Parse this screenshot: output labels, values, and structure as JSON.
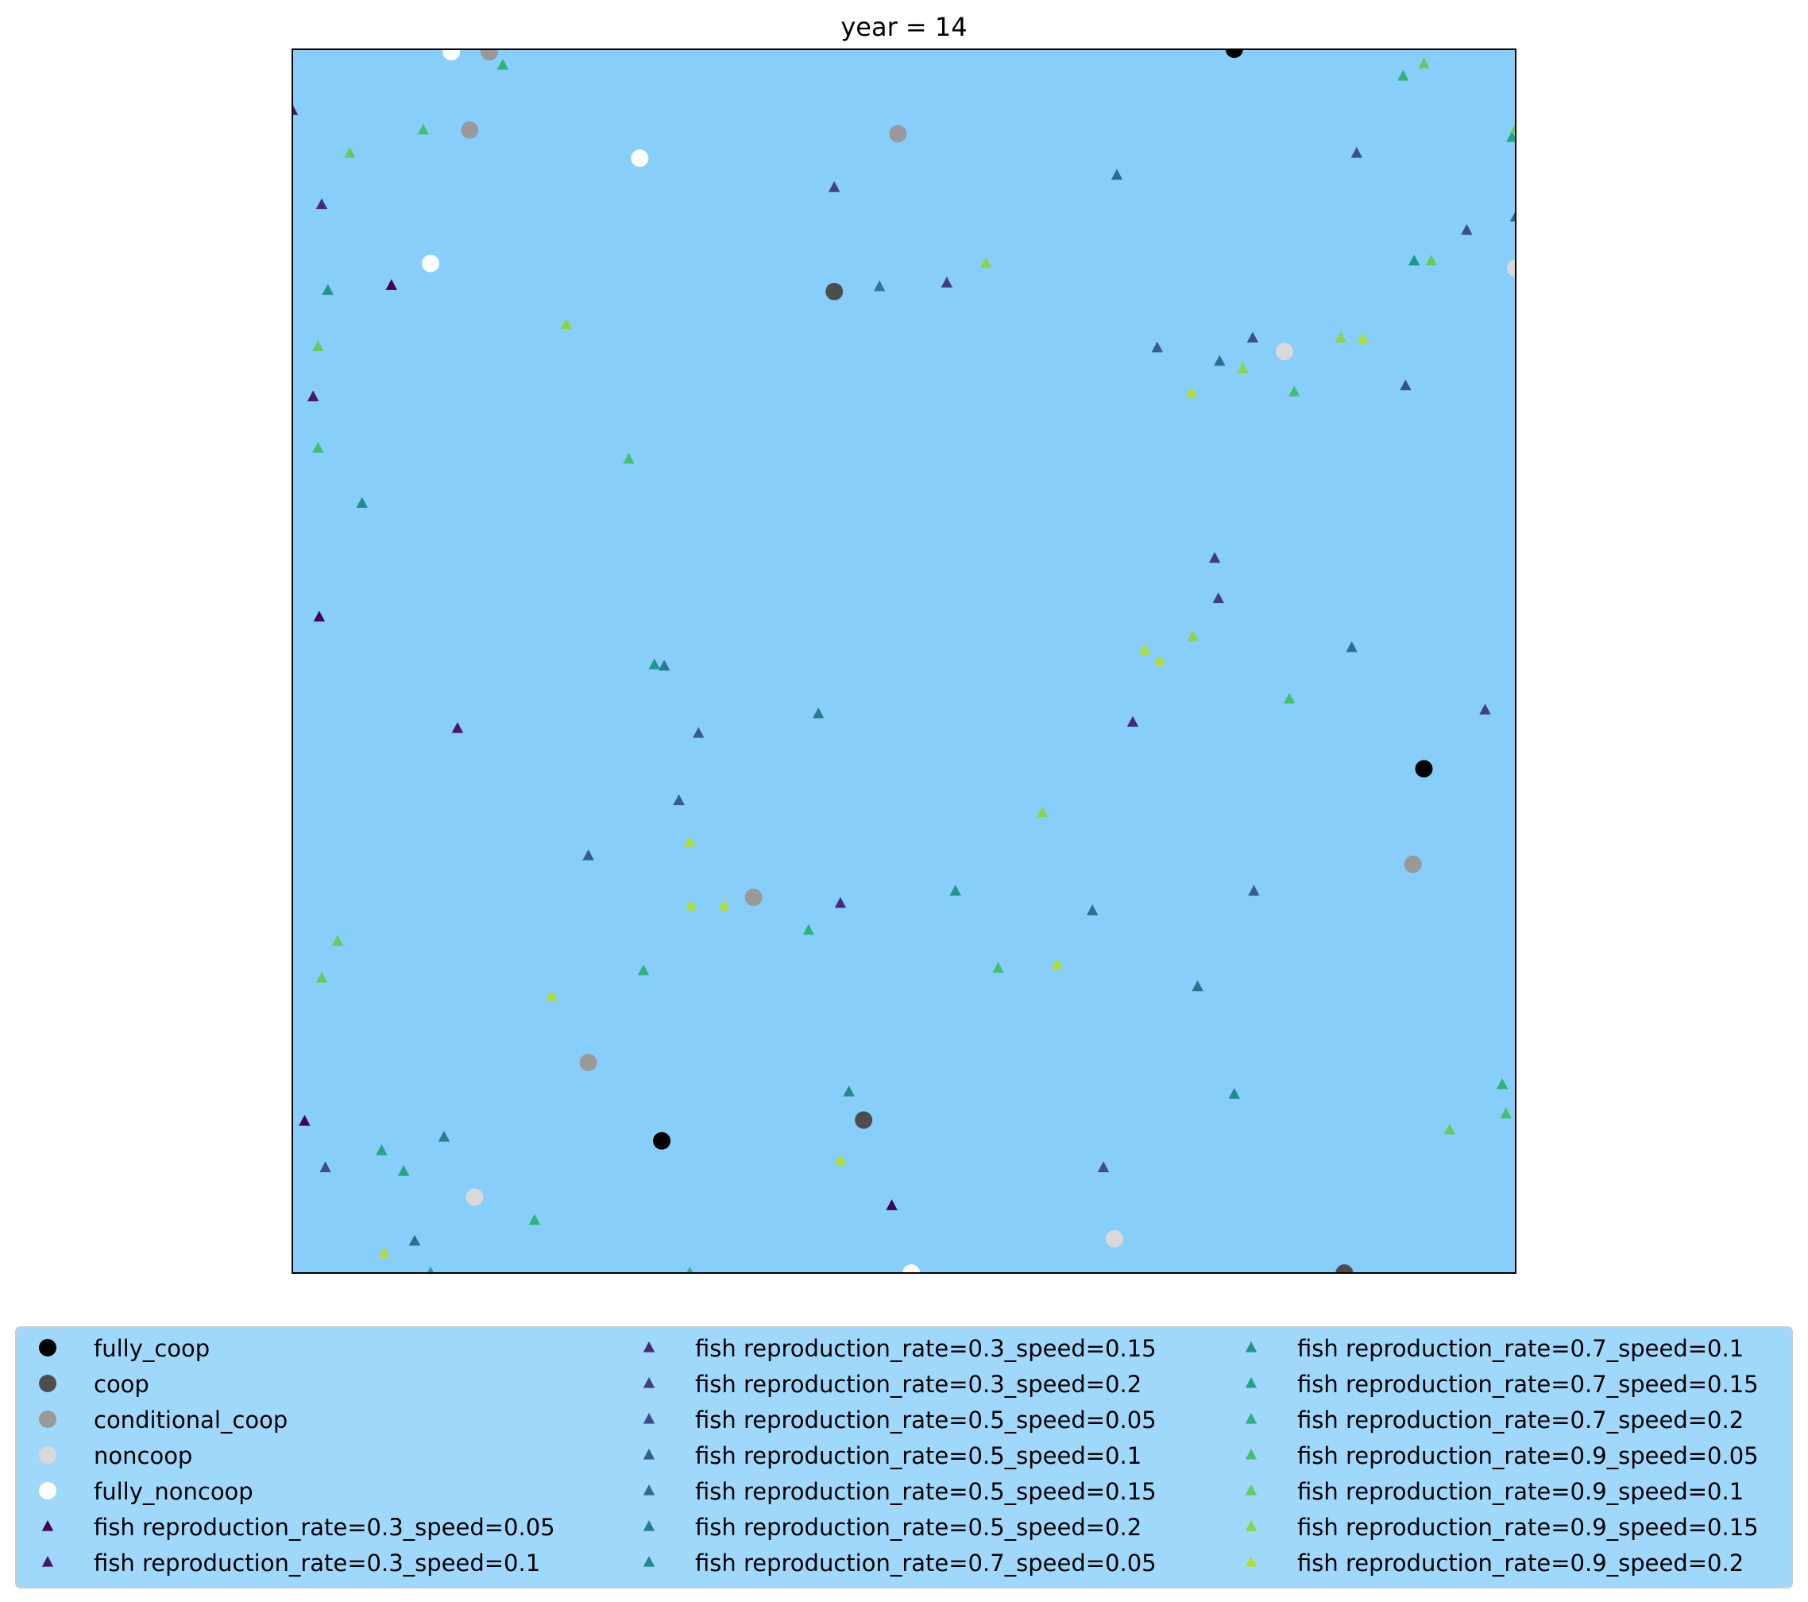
{
  "chart_data": {
    "type": "scatter",
    "title": "year = 14",
    "xlim": [
      0,
      1
    ],
    "ylim": [
      0,
      1
    ],
    "background": "#87cefa",
    "grid": false,
    "axis_ticks": false,
    "legend_position": "bottom",
    "legend_columns": 3,
    "series": [
      {
        "name": "fully_coop",
        "marker": "circle",
        "color": "#000000",
        "points": [
          [
            0.77,
            1.0
          ],
          [
            0.925,
            0.412
          ],
          [
            0.302,
            0.108
          ]
        ]
      },
      {
        "name": "coop",
        "marker": "circle",
        "color": "#4d4d4d",
        "points": [
          [
            0.443,
            0.802
          ],
          [
            0.467,
            0.125
          ],
          [
            0.86,
            0.0
          ]
        ]
      },
      {
        "name": "conditional_coop",
        "marker": "circle",
        "color": "#999999",
        "points": [
          [
            0.161,
            0.998
          ],
          [
            0.145,
            0.934
          ],
          [
            0.495,
            0.931
          ],
          [
            0.377,
            0.307
          ],
          [
            0.916,
            0.334
          ],
          [
            0.242,
            0.172
          ]
        ]
      },
      {
        "name": "noncoop",
        "marker": "circle",
        "color": "#d9d9d9",
        "points": [
          [
            1.0,
            0.821
          ],
          [
            0.811,
            0.753
          ],
          [
            0.149,
            0.062
          ],
          [
            0.672,
            0.028
          ]
        ]
      },
      {
        "name": "fully_noncoop",
        "marker": "circle",
        "color": "#ffffff",
        "points": [
          [
            0.13,
            0.998
          ],
          [
            0.284,
            0.911
          ],
          [
            0.113,
            0.825
          ],
          [
            0.506,
            0.0
          ]
        ]
      },
      {
        "name": "fish reproduction_rate=0.3_speed=0.05",
        "marker": "triangle",
        "color": "#440154",
        "points": [
          [
            0.081,
            0.807
          ],
          [
            0.022,
            0.536
          ],
          [
            0.01,
            0.124
          ],
          [
            0.49,
            0.055
          ]
        ]
      },
      {
        "name": "fish reproduction_rate=0.3_speed=0.1",
        "marker": "triangle",
        "color": "#481769",
        "points": [
          [
            0.0,
            0.95
          ],
          [
            0.017,
            0.716
          ],
          [
            0.135,
            0.445
          ]
        ]
      },
      {
        "name": "fish reproduction_rate=0.3_speed=0.15",
        "marker": "triangle",
        "color": "#472a7a",
        "points": [
          [
            0.024,
            0.873
          ],
          [
            0.448,
            0.302
          ],
          [
            0.687,
            0.45
          ]
        ]
      },
      {
        "name": "fish reproduction_rate=0.3_speed=0.2",
        "marker": "triangle",
        "color": "#433d84",
        "points": [
          [
            0.443,
            0.887
          ],
          [
            0.535,
            0.809
          ],
          [
            0.754,
            0.584
          ],
          [
            0.757,
            0.551
          ],
          [
            0.975,
            0.46
          ]
        ]
      },
      {
        "name": "fish reproduction_rate=0.5_speed=0.05",
        "marker": "triangle",
        "color": "#3d4e8a",
        "points": [
          [
            0.96,
            0.852
          ],
          [
            0.87,
            0.915
          ],
          [
            0.91,
            0.725
          ],
          [
            0.785,
            0.764
          ],
          [
            0.027,
            0.086
          ],
          [
            0.663,
            0.086
          ]
        ]
      },
      {
        "name": "fish reproduction_rate=0.5_speed=0.1",
        "marker": "triangle",
        "color": "#355e8d",
        "points": [
          [
            1.0,
            0.863
          ],
          [
            0.707,
            0.756
          ],
          [
            0.332,
            0.441
          ],
          [
            0.316,
            0.386
          ],
          [
            0.242,
            0.341
          ],
          [
            0.786,
            0.312
          ]
        ]
      },
      {
        "name": "fish reproduction_rate=0.5_speed=0.15",
        "marker": "triangle",
        "color": "#2e6d8e",
        "points": [
          [
            0.674,
            0.897
          ],
          [
            0.758,
            0.745
          ],
          [
            0.866,
            0.511
          ],
          [
            0.654,
            0.296
          ],
          [
            0.74,
            0.234
          ],
          [
            0.1,
            0.026
          ]
        ]
      },
      {
        "name": "fish reproduction_rate=0.5_speed=0.2",
        "marker": "triangle",
        "color": "#297b8e",
        "points": [
          [
            0.48,
            0.806
          ],
          [
            0.43,
            0.457
          ],
          [
            0.124,
            0.111
          ],
          [
            0.304,
            0.496
          ]
        ]
      },
      {
        "name": "fish reproduction_rate=0.7_speed=0.05",
        "marker": "triangle",
        "color": "#23898e",
        "points": [
          [
            0.142,
            1.005
          ],
          [
            0.057,
            0.629
          ],
          [
            0.455,
            0.148
          ],
          [
            0.77,
            0.146
          ]
        ]
      },
      {
        "name": "fish reproduction_rate=0.7_speed=0.1",
        "marker": "triangle",
        "color": "#1f978b",
        "points": [
          [
            0.029,
            0.803
          ],
          [
            0.917,
            0.827
          ],
          [
            0.296,
            0.497
          ],
          [
            0.542,
            0.312
          ]
        ]
      },
      {
        "name": "fish reproduction_rate=0.7_speed=0.15",
        "marker": "triangle",
        "color": "#21a585",
        "points": [
          [
            0.183,
            1.008
          ],
          [
            0.997,
            0.928
          ],
          [
            0.073,
            0.1
          ],
          [
            0.091,
            0.083
          ],
          [
            0.113,
            0.0
          ]
        ]
      },
      {
        "name": "fish reproduction_rate=0.7_speed=0.2",
        "marker": "triangle",
        "color": "#2eb37c",
        "points": [
          [
            0.172,
            0.987
          ],
          [
            0.908,
            0.978
          ],
          [
            0.422,
            0.28
          ],
          [
            0.287,
            0.247
          ],
          [
            0.198,
            0.043
          ],
          [
            0.325,
            0.0
          ],
          [
            0.989,
            0.154
          ]
        ]
      },
      {
        "name": "fish reproduction_rate=0.9_speed=0.05",
        "marker": "triangle",
        "color": "#46c06f",
        "points": [
          [
            0.107,
            0.934
          ],
          [
            0.275,
            0.665
          ],
          [
            0.819,
            0.72
          ],
          [
            0.815,
            0.469
          ],
          [
            0.021,
            0.674
          ],
          [
            0.577,
            0.249
          ],
          [
            0.992,
            0.13
          ]
        ]
      },
      {
        "name": "fish reproduction_rate=0.9_speed=0.1",
        "marker": "triangle",
        "color": "#65cb5e",
        "points": [
          [
            0.925,
            0.988
          ],
          [
            0.047,
            0.915
          ],
          [
            0.931,
            0.827
          ],
          [
            0.021,
            0.757
          ],
          [
            0.037,
            0.271
          ],
          [
            0.024,
            0.241
          ],
          [
            0.946,
            0.117
          ],
          [
            1.0,
            0.935
          ]
        ]
      },
      {
        "name": "fish reproduction_rate=0.9_speed=0.15",
        "marker": "triangle",
        "color": "#89d548",
        "points": [
          [
            0.224,
            0.775
          ],
          [
            0.567,
            0.825
          ],
          [
            0.857,
            0.764
          ],
          [
            0.777,
            0.739
          ],
          [
            0.736,
            0.52
          ],
          [
            0.613,
            0.376
          ]
        ]
      },
      {
        "name": "fish reproduction_rate=0.9_speed=0.2",
        "marker": "triangle",
        "color": "#b0dd2f",
        "points": [
          [
            0.735,
            0.719
          ],
          [
            0.697,
            0.509
          ],
          [
            0.709,
            0.5
          ],
          [
            0.325,
            0.352
          ],
          [
            0.326,
            0.3
          ],
          [
            0.353,
            0.3
          ],
          [
            0.625,
            0.252
          ],
          [
            0.212,
            0.226
          ],
          [
            0.075,
            0.016
          ],
          [
            0.448,
            0.092
          ],
          [
            0.875,
            0.763
          ]
        ]
      }
    ]
  }
}
